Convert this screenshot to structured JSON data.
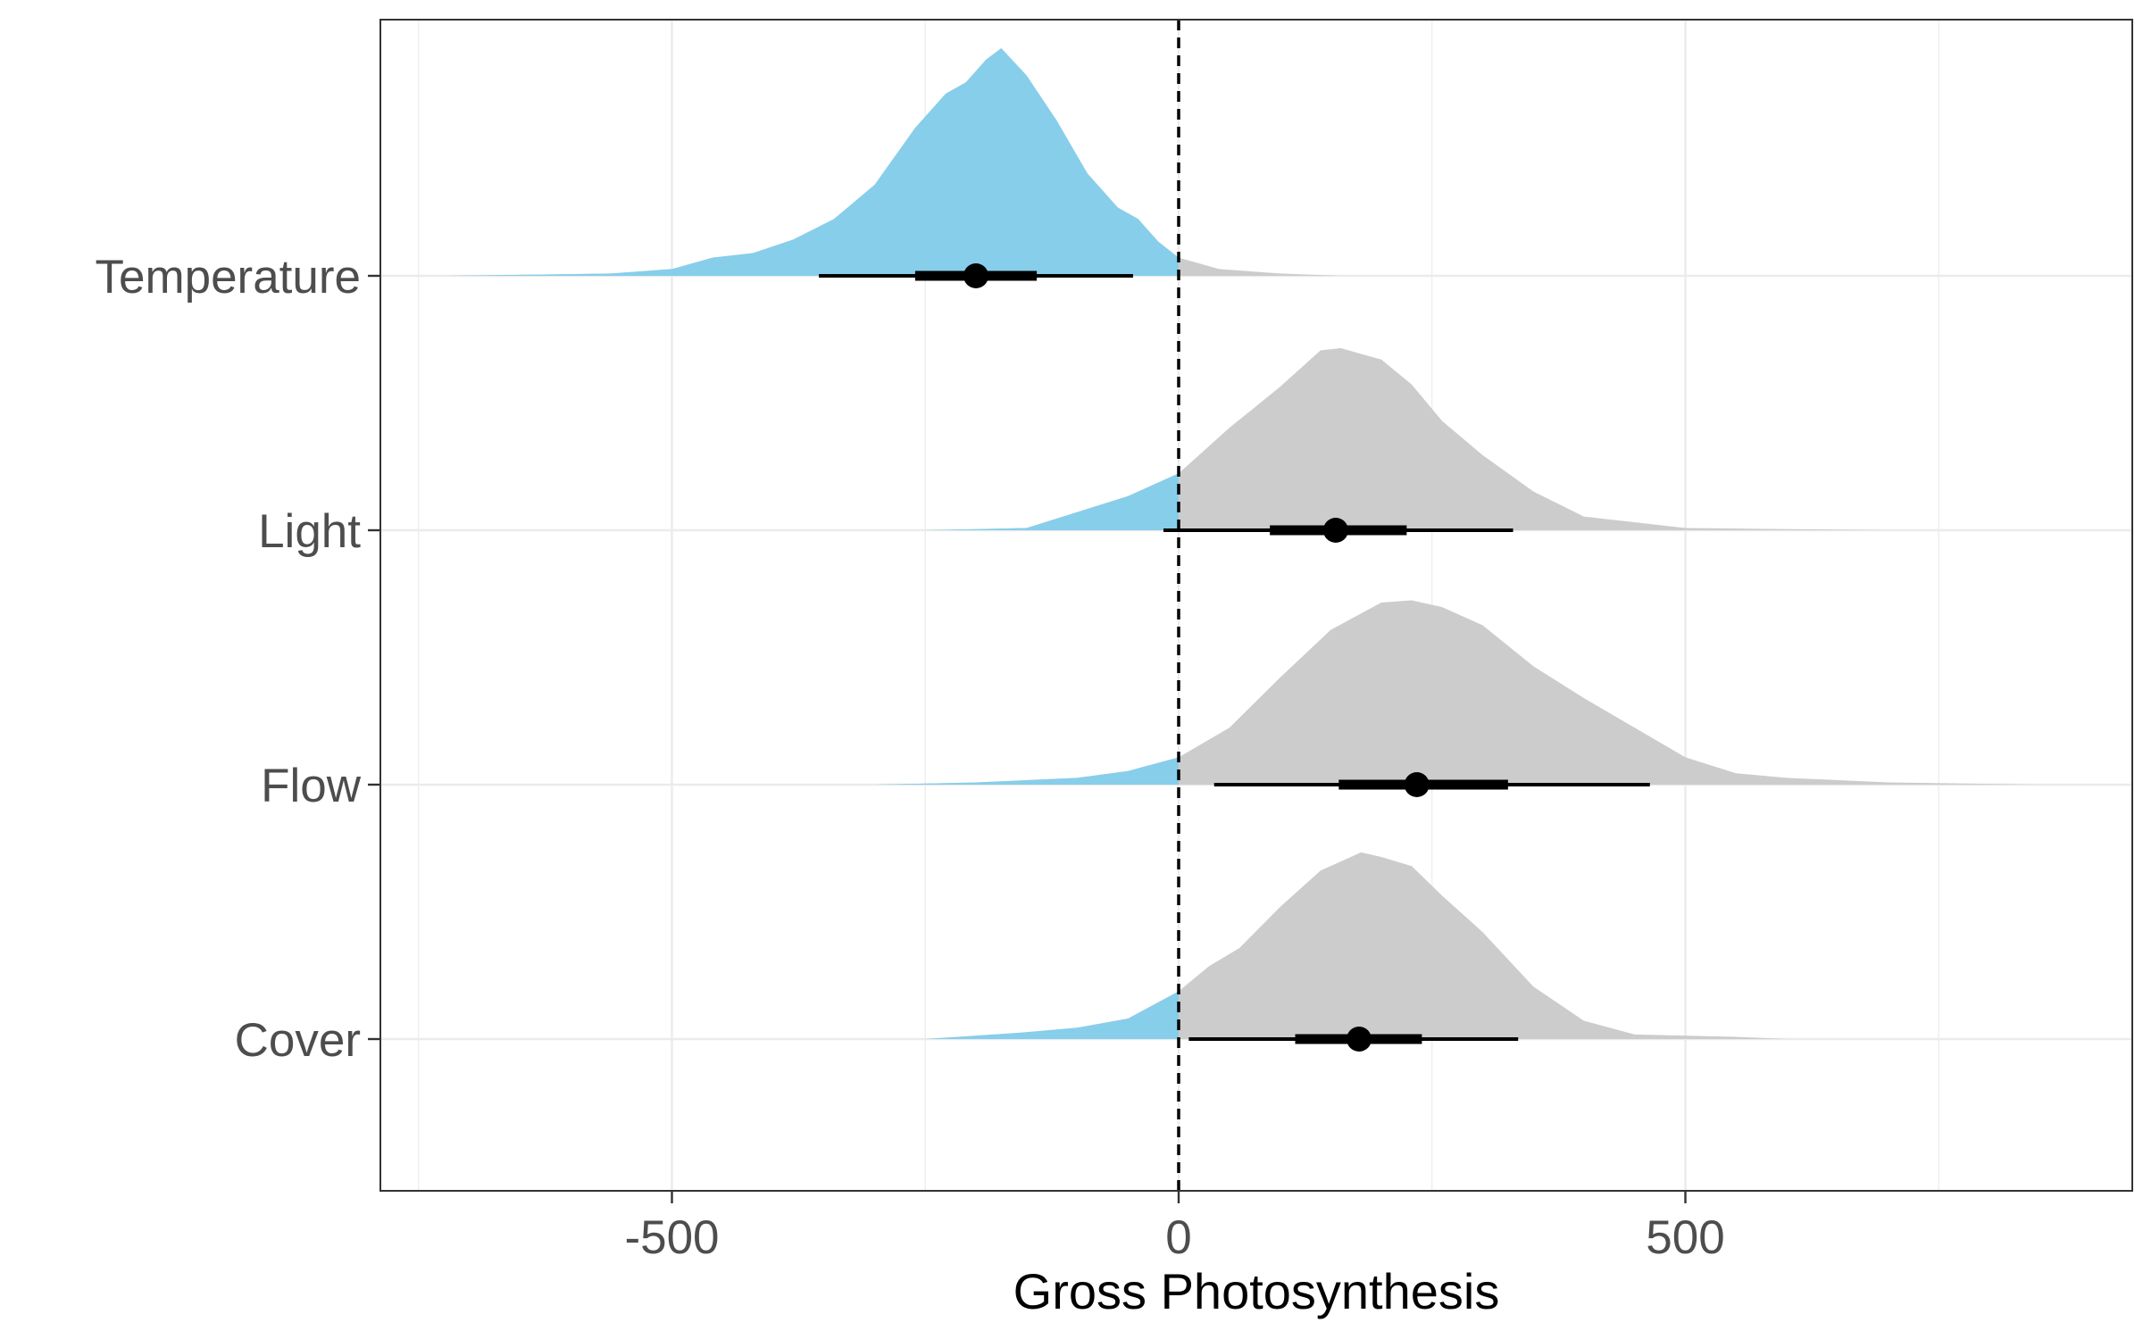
{
  "chart_data": {
    "type": "halfeye",
    "title": "",
    "xlabel": "Gross Photosynthesis",
    "ylabel": "",
    "xlim": [
      -750,
      900
    ],
    "x_ticks": [
      -500,
      0,
      500
    ],
    "x_tick_labels": [
      "-500",
      "0",
      "500"
    ],
    "x_minor_gridlines": [
      -750,
      -250,
      250,
      750
    ],
    "reference_line": {
      "x": 0,
      "style": "dashed",
      "color": "#000000"
    },
    "grid": true,
    "legend": "none",
    "colors": {
      "below_zero": "#87CEEB",
      "above_zero": "#CCCCCC",
      "interval": "#000000",
      "grid": "#EBEBEB"
    },
    "categories": [
      "Temperature",
      "Light",
      "Flow",
      "Cover"
    ],
    "series": [
      {
        "category": "Temperature",
        "median": -200,
        "interval_66": [
          -260,
          -140
        ],
        "interval_95": [
          -355,
          -45
        ],
        "density_x": [
          -720,
          -560,
          -500,
          -460,
          -420,
          -380,
          -340,
          -300,
          -260,
          -230,
          -210,
          -190,
          -175,
          -150,
          -120,
          -90,
          -60,
          -40,
          -20,
          0,
          40,
          100,
          160
        ],
        "density_y": [
          0,
          0.01,
          0.03,
          0.08,
          0.1,
          0.16,
          0.25,
          0.4,
          0.65,
          0.8,
          0.85,
          0.95,
          1.0,
          0.88,
          0.68,
          0.45,
          0.3,
          0.25,
          0.15,
          0.08,
          0.03,
          0.01,
          0
        ]
      },
      {
        "category": "Light",
        "median": 155,
        "interval_66": [
          90,
          225
        ],
        "interval_95": [
          -15,
          330
        ],
        "density_x": [
          -250,
          -150,
          -50,
          0,
          50,
          100,
          140,
          160,
          200,
          230,
          260,
          300,
          350,
          400,
          500,
          600,
          700
        ],
        "density_y": [
          0,
          0.01,
          0.15,
          0.25,
          0.45,
          0.63,
          0.79,
          0.8,
          0.75,
          0.64,
          0.48,
          0.33,
          0.17,
          0.06,
          0.01,
          0.005,
          0
        ]
      },
      {
        "category": "Flow",
        "median": 235,
        "interval_66": [
          158,
          325
        ],
        "interval_95": [
          35,
          465
        ],
        "density_x": [
          -300,
          -200,
          -100,
          -50,
          0,
          50,
          100,
          150,
          200,
          230,
          260,
          300,
          350,
          400,
          450,
          500,
          550,
          600,
          700,
          850
        ],
        "density_y": [
          0,
          0.01,
          0.03,
          0.06,
          0.12,
          0.25,
          0.47,
          0.68,
          0.8,
          0.81,
          0.78,
          0.7,
          0.52,
          0.38,
          0.25,
          0.12,
          0.05,
          0.03,
          0.01,
          0
        ]
      },
      {
        "category": "Cover",
        "median": 178,
        "interval_66": [
          115,
          240
        ],
        "interval_95": [
          10,
          335
        ],
        "density_x": [
          -250,
          -150,
          -100,
          -50,
          0,
          30,
          60,
          100,
          140,
          180,
          200,
          230,
          260,
          300,
          350,
          400,
          450,
          550,
          600
        ],
        "density_y": [
          0,
          0.03,
          0.05,
          0.09,
          0.21,
          0.32,
          0.4,
          0.58,
          0.74,
          0.82,
          0.8,
          0.76,
          0.63,
          0.47,
          0.23,
          0.08,
          0.02,
          0.01,
          0
        ]
      }
    ]
  }
}
